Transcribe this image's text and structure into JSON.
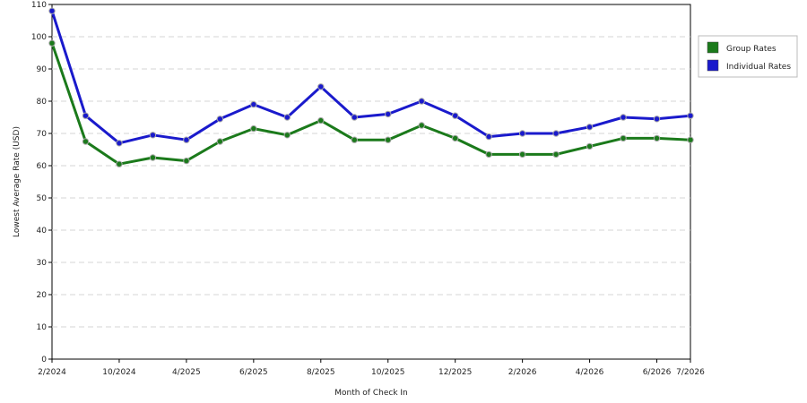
{
  "chart_data": {
    "type": "line",
    "title": "",
    "xlabel": "Month of Check In",
    "ylabel": "Lowest Average Rate (USD)",
    "ylim": [
      0,
      110
    ],
    "y_ticks": [
      0,
      10,
      20,
      30,
      40,
      50,
      60,
      70,
      80,
      90,
      100,
      110
    ],
    "grid": true,
    "legend": "right",
    "x_ticks": [
      {
        "index": 0,
        "label": "2/2024"
      },
      {
        "index": 2,
        "label": "10/2024"
      },
      {
        "index": 4,
        "label": "4/2025"
      },
      {
        "index": 6,
        "label": "6/2025"
      },
      {
        "index": 8,
        "label": "8/2025"
      },
      {
        "index": 10,
        "label": "10/2025"
      },
      {
        "index": 12,
        "label": "12/2025"
      },
      {
        "index": 14,
        "label": "2/2026"
      },
      {
        "index": 16,
        "label": "4/2026"
      },
      {
        "index": 18,
        "label": "6/2026"
      },
      {
        "index": 19,
        "label": "7/2026"
      }
    ],
    "series": [
      {
        "name": "Group Rates",
        "color": "#1b7a1b",
        "values": [
          98,
          67.5,
          60.5,
          62.5,
          61.5,
          67.5,
          71.5,
          69.5,
          74,
          68,
          68,
          72.5,
          68.5,
          63.5,
          63.5,
          63.5,
          66,
          68.5,
          68.5,
          68
        ]
      },
      {
        "name": "Individual Rates",
        "color": "#1a1acc",
        "values": [
          108,
          75.5,
          67,
          69.5,
          68,
          74.5,
          79,
          75,
          84.5,
          75,
          76,
          80,
          75.5,
          69,
          70,
          70,
          72,
          75,
          74.5,
          75.5
        ]
      }
    ]
  }
}
